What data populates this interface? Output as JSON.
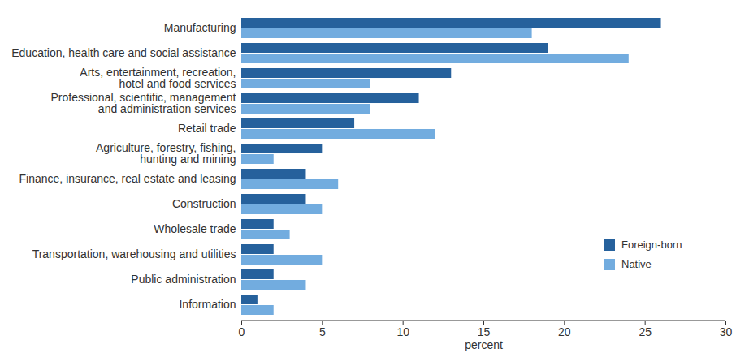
{
  "chart_data": {
    "type": "bar",
    "orientation": "horizontal",
    "categories": [
      "Manufacturing",
      "Education, health care and social assistance",
      "Arts, entertainment, recreation,\nhotel and food services",
      "Professional, scientific, management\nand administration services",
      "Retail trade",
      "Agriculture, forestry, fishing,\nhunting and mining",
      "Finance, insurance, real estate and leasing",
      "Construction",
      "Wholesale trade",
      "Transportation, warehousing and utilities",
      "Public administration",
      "Information"
    ],
    "series": [
      {
        "name": "Foreign-born",
        "color": "#26619c",
        "values": [
          26,
          19,
          13,
          11,
          7,
          5,
          4,
          4,
          2,
          2,
          2,
          1
        ]
      },
      {
        "name": "Native",
        "color": "#72acdf",
        "values": [
          18,
          24,
          8,
          8,
          12,
          2,
          6,
          5,
          3,
          5,
          4,
          2
        ]
      }
    ],
    "xlim": [
      0,
      30
    ],
    "xticks": [
      0,
      5,
      10,
      15,
      20,
      25,
      30
    ],
    "xlabel": "percent",
    "legend": "lower right",
    "grid": false
  }
}
